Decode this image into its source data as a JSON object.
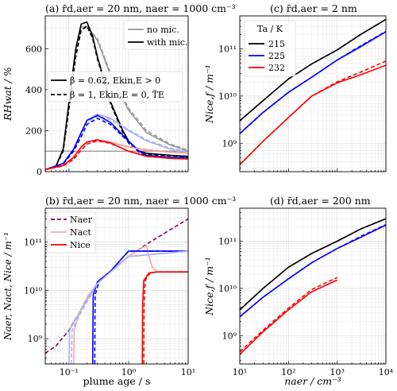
{
  "chart_data": [
    {
      "panel": "a",
      "type": "line",
      "title": "(a) r̄d,aer = 20 nm,  naer = 1000 cm⁻³",
      "ylabel": "RHwat / %",
      "xscale": "log",
      "xlim": [
        0.04,
        10
      ],
      "ylim": [
        0,
        760
      ],
      "yticks": [
        "0",
        "200",
        "400",
        "600"
      ],
      "legend_styles": [
        "no mic.",
        "with mic."
      ],
      "legend_models": [
        "β = 0.62, Ekin,E > 0",
        "β = 1, Ekin,E = 0, T̃E"
      ],
      "hline": 100,
      "series": [
        {
          "color": "#9a9a9a",
          "dash": false,
          "x": [
            0.04,
            0.06,
            0.08,
            0.1,
            0.13,
            0.16,
            0.2,
            0.3,
            0.5,
            1,
            2,
            5,
            10
          ],
          "y": [
            10,
            25,
            110,
            340,
            600,
            705,
            710,
            640,
            470,
            300,
            190,
            130,
            100
          ]
        },
        {
          "color": "#9a9a9a",
          "dash": true,
          "x": [
            0.04,
            0.06,
            0.08,
            0.1,
            0.13,
            0.16,
            0.2,
            0.3,
            0.5,
            1,
            2,
            5,
            10
          ],
          "y": [
            10,
            25,
            100,
            310,
            570,
            690,
            705,
            650,
            480,
            310,
            200,
            135,
            105
          ]
        },
        {
          "color": "#000000",
          "dash": false,
          "x": [
            0.04,
            0.06,
            0.08,
            0.1,
            0.13,
            0.16,
            0.2,
            0.25,
            0.3,
            0.5,
            0.8,
            1,
            1.5,
            2,
            5,
            10
          ],
          "y": [
            10,
            25,
            110,
            340,
            600,
            720,
            730,
            660,
            560,
            340,
            200,
            150,
            100,
            90,
            80,
            75
          ]
        },
        {
          "color": "#000000",
          "dash": true,
          "x": [
            0.04,
            0.06,
            0.08,
            0.1,
            0.13,
            0.16,
            0.2,
            0.25,
            0.3,
            0.5,
            0.8,
            1,
            1.5,
            2,
            5,
            10
          ],
          "y": [
            10,
            25,
            100,
            310,
            560,
            690,
            710,
            650,
            550,
            330,
            190,
            140,
            95,
            85,
            78,
            72
          ]
        },
        {
          "color": "#aab0ee",
          "dash": false,
          "x": [
            0.04,
            0.08,
            0.12,
            0.16,
            0.2,
            0.3,
            0.5,
            1,
            2,
            5,
            10
          ],
          "y": [
            10,
            40,
            110,
            190,
            250,
            280,
            260,
            200,
            150,
            110,
            90
          ]
        },
        {
          "color": "#aab0ee",
          "dash": true,
          "x": [
            0.04,
            0.08,
            0.12,
            0.16,
            0.2,
            0.3,
            0.5,
            1,
            2,
            5,
            10
          ],
          "y": [
            10,
            38,
            100,
            180,
            240,
            270,
            255,
            205,
            155,
            115,
            95
          ]
        },
        {
          "color": "#0000ff",
          "dash": false,
          "x": [
            0.04,
            0.08,
            0.12,
            0.16,
            0.2,
            0.3,
            0.5,
            1,
            1.5,
            2,
            5,
            10
          ],
          "y": [
            10,
            40,
            110,
            190,
            250,
            275,
            240,
            150,
            100,
            80,
            70,
            68
          ]
        },
        {
          "color": "#0000ff",
          "dash": true,
          "x": [
            0.04,
            0.08,
            0.12,
            0.16,
            0.2,
            0.3,
            0.5,
            1,
            1.5,
            2,
            5,
            10
          ],
          "y": [
            10,
            38,
            100,
            170,
            230,
            260,
            230,
            145,
            97,
            78,
            68,
            66
          ]
        },
        {
          "color": "#f0a0a0",
          "dash": false,
          "x": [
            0.04,
            0.08,
            0.12,
            0.16,
            0.2,
            0.3,
            0.5,
            1,
            2,
            5,
            10
          ],
          "y": [
            10,
            30,
            70,
            120,
            145,
            155,
            145,
            120,
            105,
            95,
            90
          ]
        },
        {
          "color": "#f0a0a0",
          "dash": true,
          "x": [
            0.04,
            0.08,
            0.12,
            0.16,
            0.2,
            0.3,
            0.5,
            1,
            2,
            5,
            10
          ],
          "y": [
            10,
            28,
            60,
            105,
            135,
            150,
            142,
            122,
            108,
            97,
            92
          ]
        },
        {
          "color": "#ff0000",
          "dash": false,
          "x": [
            0.04,
            0.08,
            0.12,
            0.16,
            0.2,
            0.3,
            0.5,
            1,
            2,
            5,
            10
          ],
          "y": [
            10,
            30,
            70,
            120,
            145,
            155,
            140,
            100,
            75,
            65,
            62
          ]
        },
        {
          "color": "#ff0000",
          "dash": true,
          "x": [
            0.04,
            0.08,
            0.12,
            0.16,
            0.2,
            0.3,
            0.5,
            1,
            2,
            5,
            10
          ],
          "y": [
            10,
            28,
            60,
            105,
            135,
            150,
            138,
            100,
            75,
            65,
            62
          ]
        }
      ]
    },
    {
      "panel": "b",
      "type": "line",
      "title": "(b) r̄d,aer = 20 nm,  naer = 1000 cm⁻³",
      "xlabel": "plume age / s",
      "ylabel": "Naer, Nact, Nice / m⁻¹",
      "xscale": "log",
      "yscale": "log",
      "xlim": [
        0.04,
        10
      ],
      "ylim": [
        300000000.0,
        500000000000.0
      ],
      "xticks": [
        "10⁻¹",
        "10⁰",
        "10¹"
      ],
      "yticks": [
        "10⁹",
        "10¹⁰",
        "10¹¹"
      ],
      "legend": [
        "Naer",
        "Nact",
        "Nice"
      ],
      "series": [
        {
          "name": "Naer",
          "color": "#800060",
          "dash": true,
          "x": [
            0.04,
            0.06,
            0.1,
            0.15,
            0.2,
            0.3,
            0.5,
            1,
            2,
            5,
            10
          ],
          "y": [
            500000000.0,
            700000000.0,
            1500000000.0,
            3500000000.0,
            7000000000.0,
            14000000000.0,
            25000000000.0,
            50000000000.0,
            90000000000.0,
            180000000000.0,
            300000000000.0
          ]
        },
        {
          "name": "Nact",
          "color": "#f4a8a8",
          "dash": false,
          "x": [
            0.12,
            0.122,
            0.15,
            0.2,
            0.3,
            0.5,
            1,
            1.5,
            2,
            2.2,
            2.5,
            3,
            10
          ],
          "y": [
            300000000.0,
            1500000000.0,
            3500000000.0,
            7000000000.0,
            14000000000.0,
            25000000000.0,
            50000000000.0,
            70000000000.0,
            85000000000.0,
            50000000000.0,
            30000000000.0,
            24000000000.0,
            24000000000.0
          ]
        },
        {
          "name": "Nice",
          "color": "#ff0000",
          "dash": false,
          "x": [
            1.7,
            1.72,
            1.8,
            2.2,
            3,
            10
          ],
          "y": [
            300000000.0,
            5000000000.0,
            16000000000.0,
            23000000000.0,
            24000000000.0,
            24000000000.0
          ]
        },
        {
          "color": "#0000ff",
          "dash": false,
          "x": [
            0.25,
            0.255,
            0.3,
            0.5,
            1,
            10
          ],
          "y": [
            300000000.0,
            8000000000.0,
            15000000000.0,
            25000000000.0,
            65000000000.0,
            65000000000.0
          ]
        },
        {
          "color": "#0000ff",
          "dash": true,
          "x": [
            0.27,
            0.275,
            0.32,
            0.5,
            1,
            10
          ],
          "y": [
            300000000.0,
            8000000000.0,
            15000000000.0,
            25000000000.0,
            65000000000.0,
            65000000000.0
          ]
        },
        {
          "color": "#ff0000",
          "dash": true,
          "x": [
            1.8,
            1.82,
            1.9,
            2.3,
            3,
            10
          ],
          "y": [
            300000000.0,
            5000000000.0,
            16000000000.0,
            23000000000.0,
            24000000000.0,
            24000000000.0
          ]
        },
        {
          "color": "#aab0ee",
          "dash": false,
          "x": [
            0.1,
            0.102,
            0.15,
            0.3,
            1,
            10
          ],
          "y": [
            300000000.0,
            1500000000.0,
            3500000000.0,
            14000000000.0,
            50000000000.0,
            65000000000.0
          ]
        },
        {
          "color": "#aab0ee",
          "dash": true,
          "x": [
            0.11,
            0.112,
            0.16,
            0.3,
            1,
            10
          ],
          "y": [
            300000000.0,
            1500000000.0,
            3500000000.0,
            14000000000.0,
            50000000000.0,
            65000000000.0
          ]
        }
      ]
    },
    {
      "panel": "c",
      "type": "line",
      "title": "(c) r̄d,aer = 2 nm",
      "ylabel": "Nice,f / m⁻¹",
      "xscale": "log",
      "yscale": "log",
      "xlim": [
        10,
        10000
      ],
      "ylim": [
        250000000.0,
        500000000000.0
      ],
      "yticks": [
        "10⁹",
        "10¹⁰",
        "10¹¹"
      ],
      "legend_title": "Ta / K",
      "legend": [
        "215",
        "225",
        "232"
      ],
      "series": [
        {
          "name": "215",
          "color": "#000000",
          "dash": false,
          "x": [
            10,
            30,
            100,
            300,
            1000,
            3000,
            10000
          ],
          "y": [
            3000000000.0,
            8000000000.0,
            23000000000.0,
            48000000000.0,
            95000000000.0,
            200000000000.0,
            420000000000.0
          ]
        },
        {
          "name": "215",
          "color": "#000000",
          "dash": true,
          "x": [
            10,
            30,
            100,
            300,
            1000,
            3000,
            10000
          ],
          "y": [
            3000000000.0,
            8000000000.0,
            23000000000.0,
            48000000000.0,
            95000000000.0,
            200000000000.0,
            420000000000.0
          ]
        },
        {
          "name": "225",
          "color": "#0000ff",
          "dash": false,
          "x": [
            10,
            30,
            100,
            300,
            1000,
            3000,
            10000
          ],
          "y": [
            1600000000.0,
            4500000000.0,
            12000000000.0,
            25000000000.0,
            58000000000.0,
            110000000000.0,
            230000000000.0
          ]
        },
        {
          "name": "225",
          "color": "#0000ff",
          "dash": true,
          "x": [
            10,
            30,
            100,
            300,
            1000,
            3000,
            10000
          ],
          "y": [
            1600000000.0,
            4500000000.0,
            12000000000.0,
            25000000000.0,
            58000000000.0,
            115000000000.0,
            235000000000.0
          ]
        },
        {
          "name": "232",
          "color": "#ff0000",
          "dash": false,
          "x": [
            10,
            30,
            100,
            300,
            1000,
            3000,
            10000
          ],
          "y": [
            350000000.0,
            1100000000.0,
            3500000000.0,
            10000000000.0,
            19000000000.0,
            28000000000.0,
            45000000000.0
          ]
        },
        {
          "name": "232",
          "color": "#ff0000",
          "dash": true,
          "x": [
            10,
            30,
            100,
            300,
            1000,
            3000,
            10000
          ],
          "y": [
            350000000.0,
            1100000000.0,
            3500000000.0,
            10000000000.0,
            20000000000.0,
            32000000000.0,
            55000000000.0
          ]
        }
      ]
    },
    {
      "panel": "d",
      "type": "line",
      "title": "(d) r̄d,aer = 200 nm",
      "xlabel": "naer / cm⁻³",
      "ylabel": "Nice,f / m⁻¹",
      "xscale": "log",
      "yscale": "log",
      "xlim": [
        10,
        10000
      ],
      "ylim": [
        250000000.0,
        500000000000.0
      ],
      "xticks": [
        "10¹",
        "10²",
        "10³",
        "10⁴"
      ],
      "yticks": [
        "10⁹",
        "10¹⁰",
        "10¹¹"
      ],
      "series": [
        {
          "color": "#000000",
          "dash": false,
          "x": [
            10,
            30,
            100,
            300,
            1000,
            3000,
            10000
          ],
          "y": [
            3500000000.0,
            10000000000.0,
            28000000000.0,
            55000000000.0,
            100000000000.0,
            180000000000.0,
            300000000000.0
          ]
        },
        {
          "color": "#000000",
          "dash": true,
          "x": [
            10,
            30,
            100,
            300,
            1000,
            3000,
            10000
          ],
          "y": [
            3500000000.0,
            10000000000.0,
            28000000000.0,
            55000000000.0,
            100000000000.0,
            180000000000.0,
            300000000000.0
          ]
        },
        {
          "color": "#0000ff",
          "dash": false,
          "x": [
            10,
            30,
            100,
            300,
            1000,
            3000,
            10000
          ],
          "y": [
            2500000000.0,
            6500000000.0,
            16000000000.0,
            35000000000.0,
            70000000000.0,
            120000000000.0,
            220000000000.0
          ]
        },
        {
          "color": "#0000ff",
          "dash": true,
          "x": [
            10,
            30,
            100,
            300,
            1000,
            3000,
            10000
          ],
          "y": [
            2500000000.0,
            6500000000.0,
            16000000000.0,
            35000000000.0,
            70000000000.0,
            125000000000.0,
            225000000000.0
          ]
        },
        {
          "color": "#ff0000",
          "dash": false,
          "x": [
            10,
            30,
            100,
            300,
            1000
          ],
          "y": [
            400000000.0,
            1200000000.0,
            3500000000.0,
            8500000000.0,
            15000000000.0
          ]
        },
        {
          "color": "#ff0000",
          "dash": true,
          "x": [
            10,
            30,
            100,
            300,
            1000
          ],
          "y": [
            450000000.0,
            1300000000.0,
            3800000000.0,
            9500000000.0,
            17000000000.0
          ]
        }
      ]
    }
  ]
}
